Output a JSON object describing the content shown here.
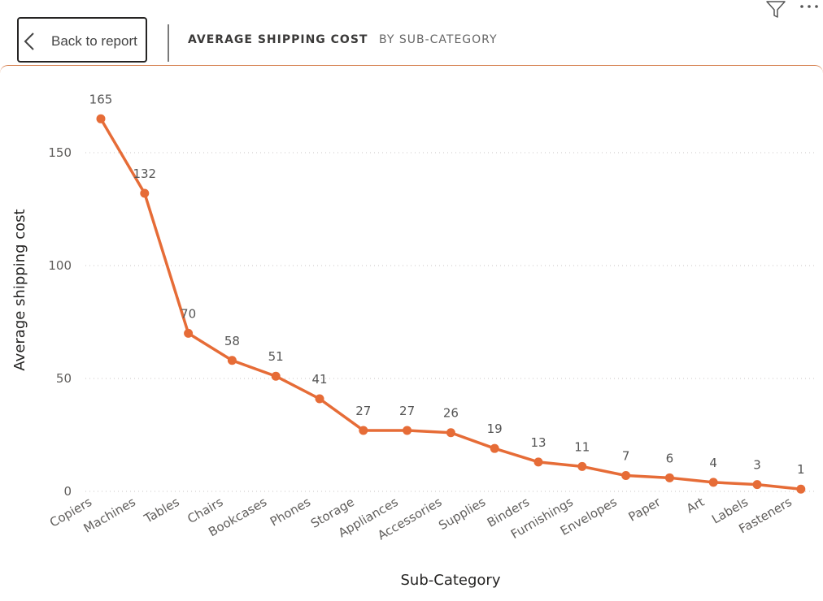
{
  "header": {
    "back_label": "Back to report",
    "title": "AVERAGE SHIPPING COST",
    "subtitle": "BY SUB-CATEGORY",
    "filter_icon": "filter-icon",
    "more_icon": "more-options-icon"
  },
  "chart_data": {
    "type": "line",
    "xlabel": "Sub-Category",
    "ylabel": "Average shipping cost",
    "ylim": [
      0,
      165
    ],
    "yticks": [
      0,
      50,
      100,
      150
    ],
    "grid": true,
    "line_color": "#e66c37",
    "categories": [
      "Copiers",
      "Machines",
      "Tables",
      "Chairs",
      "Bookcases",
      "Phones",
      "Storage",
      "Appliances",
      "Accessories",
      "Supplies",
      "Binders",
      "Furnishings",
      "Envelopes",
      "Paper",
      "Art",
      "Labels",
      "Fasteners"
    ],
    "values": [
      165,
      132,
      70,
      58,
      51,
      41,
      27,
      27,
      26,
      19,
      13,
      11,
      7,
      6,
      4,
      3,
      1
    ],
    "data_labels": [
      "165",
      "132",
      "70",
      "58",
      "51",
      "41",
      "27",
      "27",
      "26",
      "19",
      "13",
      "11",
      "7",
      "6",
      "4",
      "3",
      "1"
    ]
  }
}
